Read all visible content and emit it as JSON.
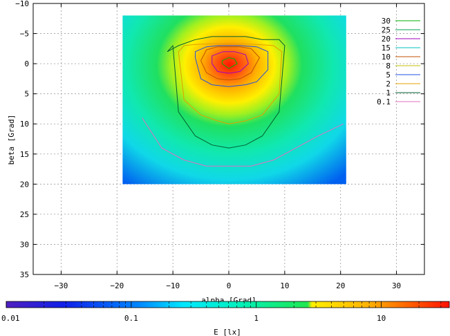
{
  "chart_data": {
    "type": "heatmap",
    "xlabel": "alpha [Grad]",
    "ylabel": "beta [Grad]",
    "colorbar_label": "E [lx]",
    "xlim": [
      -35,
      35
    ],
    "ylim": [
      -10,
      35
    ],
    "y_inverted": true,
    "x_ticks": [
      -30,
      -20,
      -10,
      0,
      10,
      20,
      30
    ],
    "x_tick_labels": [
      "−30",
      "−20",
      "−10",
      "0",
      "10",
      "20",
      "30"
    ],
    "y_ticks": [
      -10,
      -5,
      0,
      5,
      10,
      15,
      20,
      25,
      30,
      35
    ],
    "y_tick_labels": [
      "−10",
      "−5",
      "0",
      "5",
      "10",
      "15",
      "20",
      "25",
      "30",
      "35"
    ],
    "grid": true,
    "data_extent": {
      "alpha": [
        -19,
        21
      ],
      "beta": [
        -8,
        20
      ]
    },
    "colorbar": {
      "scale": "log",
      "range": [
        0.01,
        35
      ],
      "ticks": [
        0.01,
        0.1,
        1,
        10
      ],
      "tick_labels": [
        "0.01",
        "0.1",
        "1",
        "10"
      ]
    },
    "contour_levels": [
      {
        "label": "30",
        "value": 30,
        "color": "#00b000"
      },
      {
        "label": "25",
        "value": 25,
        "color": "#00a050"
      },
      {
        "label": "20",
        "value": 20,
        "color": "#a000c0"
      },
      {
        "label": "15",
        "value": 15,
        "color": "#00c0c0"
      },
      {
        "label": "10",
        "value": 10,
        "color": "#c05000"
      },
      {
        "label": "8",
        "value": 8,
        "color": "#c0c000"
      },
      {
        "label": "5",
        "value": 5,
        "color": "#2050e0"
      },
      {
        "label": "2",
        "value": 2,
        "color": "#e0a000"
      },
      {
        "label": "1",
        "value": 1,
        "color": "#006030"
      },
      {
        "label": "0.1",
        "value": 0.1,
        "color": "#e070c0"
      }
    ],
    "contours": [
      {
        "level": 0.1,
        "alpha": [
          -15.5,
          -12,
          -8,
          -4,
          0,
          4,
          8,
          12,
          16,
          20.5
        ],
        "beta": [
          9,
          14,
          16,
          17,
          17,
          17,
          16,
          14,
          12,
          10
        ]
      },
      {
        "level": 1,
        "alpha": [
          -11,
          -10,
          -9,
          -6,
          -3,
          0,
          3,
          6,
          9,
          10,
          9,
          6,
          3,
          0,
          -3,
          -6,
          -9
        ],
        "beta": [
          -2,
          -3,
          8,
          12,
          13.5,
          14,
          13.5,
          12,
          8,
          -3,
          -4,
          -4,
          -4.5,
          -4.5,
          -4.5,
          -4,
          -3
        ]
      },
      {
        "level": 2,
        "alpha": [
          -9,
          -8,
          -5,
          -2,
          0,
          3,
          6,
          9,
          9.5,
          8,
          5,
          2,
          0,
          -3,
          -6,
          -8
        ],
        "beta": [
          -2,
          6,
          8.5,
          9.5,
          10,
          9.5,
          8.5,
          5,
          -2,
          -3,
          -3.2,
          -3.3,
          -3.3,
          -3.3,
          -3.2,
          -3
        ]
      },
      {
        "level": 5,
        "alpha": [
          -6,
          -5,
          -3,
          0,
          3,
          5,
          7,
          7,
          5,
          2,
          0,
          -2,
          -4,
          -6
        ],
        "beta": [
          -1,
          2.5,
          3.5,
          3.8,
          3.5,
          3,
          1,
          -2,
          -2.8,
          -3,
          -3,
          -3,
          -2.8,
          -2
        ]
      },
      {
        "level": 10,
        "alpha": [
          -5,
          -4,
          -2,
          0,
          2,
          4,
          5.5,
          4,
          2,
          0,
          -2,
          -4
        ],
        "beta": [
          -0.5,
          1.5,
          2.5,
          2.7,
          2.5,
          1.5,
          -1,
          -2.5,
          -2.8,
          -2.8,
          -2.8,
          -2.3
        ]
      },
      {
        "level": 20,
        "alpha": [
          -3,
          -2,
          0,
          2,
          3.5,
          3,
          1,
          -1,
          -3
        ],
        "beta": [
          0,
          1.3,
          1.6,
          1.3,
          0,
          -1.5,
          -2,
          -2,
          -1.3
        ]
      },
      {
        "level": 30,
        "alpha": [
          -1.2,
          0,
          1.5,
          1,
          0,
          -1.2
        ],
        "beta": [
          0,
          0.8,
          0,
          -0.8,
          -1,
          -0.5
        ]
      }
    ]
  }
}
